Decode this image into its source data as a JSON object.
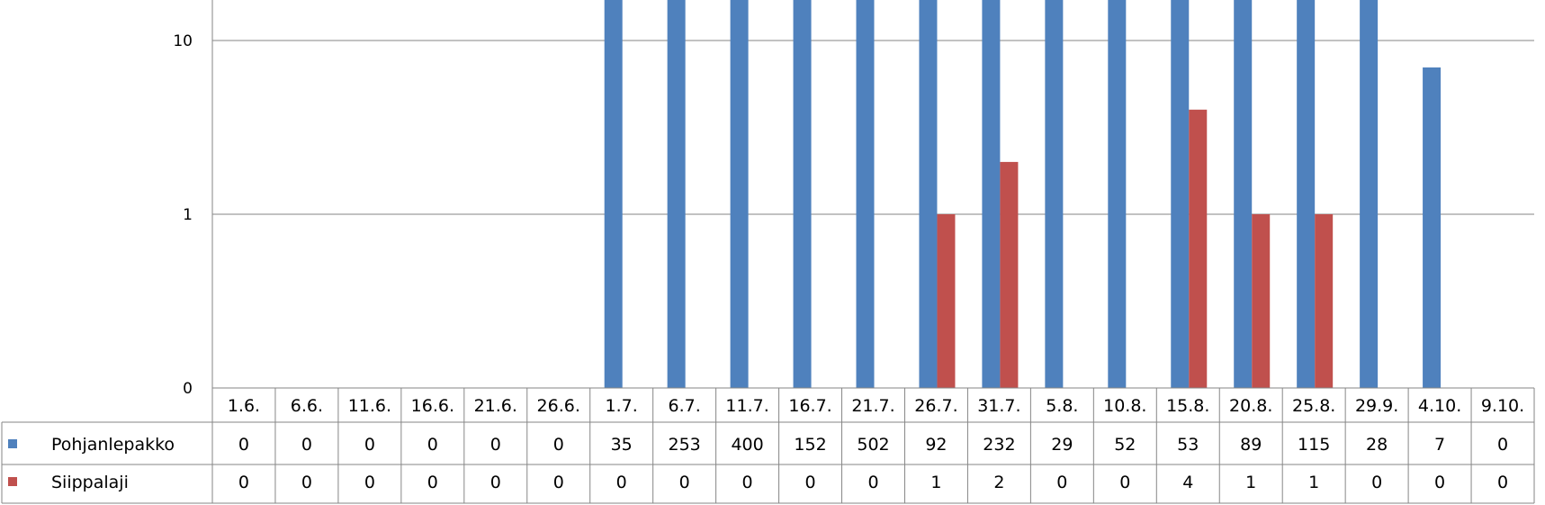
{
  "chart_data": {
    "type": "bar",
    "scale": "log",
    "title": "",
    "xlabel": "",
    "ylabel": "",
    "y_ticks": [
      "0",
      "1",
      "10"
    ],
    "categories": [
      "1.6.",
      "6.6.",
      "11.6.",
      "16.6.",
      "21.6.",
      "26.6.",
      "1.7.",
      "6.7.",
      "11.7.",
      "16.7.",
      "21.7.",
      "26.7.",
      "31.7.",
      "5.8.",
      "10.8.",
      "15.8.",
      "20.8.",
      "25.8.",
      "29.9.",
      "4.10.",
      "9.10."
    ],
    "series": [
      {
        "name": "Pohjanlepakko",
        "color": "#4F81BD",
        "values": [
          0,
          0,
          0,
          0,
          0,
          0,
          35,
          253,
          400,
          152,
          502,
          92,
          232,
          29,
          52,
          53,
          89,
          115,
          28,
          7,
          0
        ]
      },
      {
        "name": "Siippalaji",
        "color": "#C0504D",
        "values": [
          0,
          0,
          0,
          0,
          0,
          0,
          0,
          0,
          0,
          0,
          0,
          1,
          2,
          0,
          0,
          4,
          1,
          1,
          0,
          0,
          0
        ]
      }
    ],
    "grid": true,
    "legend": "data-table"
  }
}
